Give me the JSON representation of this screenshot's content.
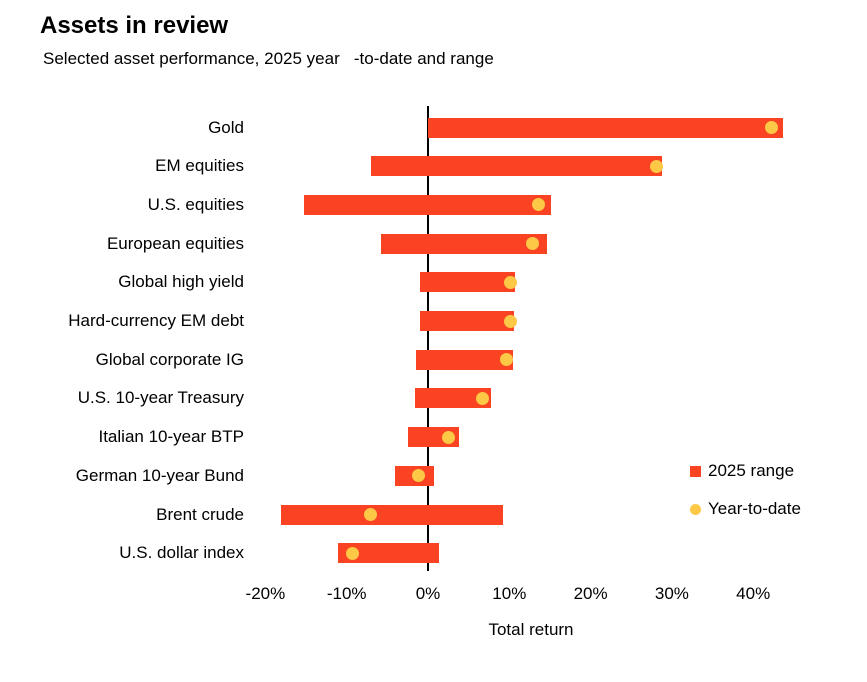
{
  "chart_data": {
    "type": "bar",
    "variant": "horizontal-range-bar-with-dot-markers",
    "title": "Assets in review",
    "subtitle": "Selected asset performance, 2025 year   -to-date and range",
    "xlabel": "Total return",
    "xlim": [
      -25,
      46
    ],
    "grid": false,
    "zero_line": true,
    "legend_position": "right-middle",
    "categories": [
      "Gold",
      "EM equities",
      "U.S. equities",
      "European equities",
      "Global high yield",
      "Hard-currency EM debt",
      "Global corporate IG",
      "U.S. 10-year Treasury",
      "Italian 10-year BTP",
      "German 10-year Bund",
      "Brent crude",
      "U.S. dollar index"
    ],
    "series": [
      {
        "name": "2025 range",
        "marker": "bar",
        "values": [
          [
            0,
            43.7
          ],
          [
            -7.0,
            28.8
          ],
          [
            -15.3,
            15.1
          ],
          [
            -5.8,
            14.6
          ],
          [
            -1.0,
            10.7
          ],
          [
            -1.0,
            10.6
          ],
          [
            -1.5,
            10.5
          ],
          [
            -1.6,
            7.7
          ],
          [
            -2.5,
            3.8
          ],
          [
            -4.1,
            0.7
          ],
          [
            -18.1,
            9.2
          ],
          [
            -11.1,
            1.3
          ]
        ]
      },
      {
        "name": "Year-to-date",
        "marker": "dot",
        "values": [
          42.3,
          28.1,
          13.6,
          12.8,
          10.2,
          10.2,
          9.7,
          6.7,
          2.5,
          -1.2,
          -7.1,
          -9.3
        ]
      }
    ],
    "xticks": [
      {
        "value": -20,
        "label": "-20%"
      },
      {
        "value": -10,
        "label": "-10%"
      },
      {
        "value": 0,
        "label": "0%"
      },
      {
        "value": 10,
        "label": "10%"
      },
      {
        "value": 20,
        "label": "20%"
      },
      {
        "value": 30,
        "label": "30%"
      },
      {
        "value": 40,
        "label": "40%"
      }
    ],
    "colors": {
      "range_bar": "#FA4323",
      "ytd_dot": "#FCC845",
      "axis_line": "#000000",
      "text": "#000000"
    }
  }
}
